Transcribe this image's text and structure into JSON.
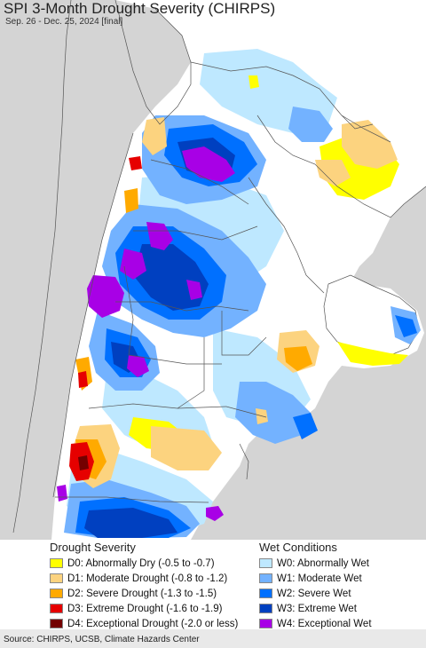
{
  "header": {
    "title": "SPI 3-Month Drought Severity (CHIRPS)",
    "subtitle": "Sep. 26 - Dec. 25, 2024 [final]"
  },
  "legend": {
    "drought": {
      "heading": "Drought Severity",
      "items": [
        {
          "label": "D0: Abnormally Dry (-0.5 to -0.7)",
          "color": "#ffff00"
        },
        {
          "label": "D1: Moderate Drought (-0.8 to -1.2)",
          "color": "#fcd37f"
        },
        {
          "label": "D2: Severe Drought (-1.3 to -1.5)",
          "color": "#ffaa00"
        },
        {
          "label": "D3: Extreme Drought (-1.6 to -1.9)",
          "color": "#e60000"
        },
        {
          "label": "D4: Exceptional Drought (-2.0 or less)",
          "color": "#730000"
        }
      ]
    },
    "wet": {
      "heading": "Wet Conditions",
      "items": [
        {
          "label": "W0: Abnormally Wet",
          "color": "#bee8ff"
        },
        {
          "label": "W1: Moderate Wet",
          "color": "#73b2ff"
        },
        {
          "label": "W2: Severe Wet",
          "color": "#0070ff"
        },
        {
          "label": "W3: Extreme Wet",
          "color": "#0040c0"
        },
        {
          "label": "W4: Exceptional Wet",
          "color": "#a800e6"
        }
      ]
    }
  },
  "footer": {
    "source": "Source: CHIRPS, UCSB, Climate Hazards Center"
  },
  "colors": {
    "outside": "#d4d4d4",
    "land": "#ffffff",
    "border": "#555555"
  }
}
